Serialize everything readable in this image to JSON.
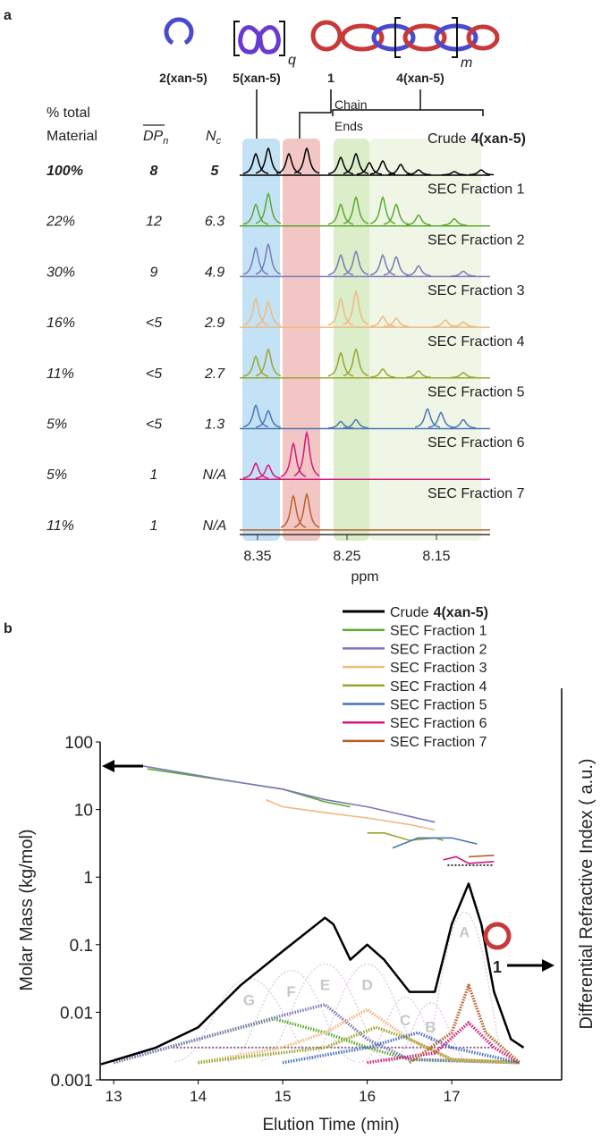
{
  "chart_data": [
    {
      "type": "nmr",
      "panel_label": "a",
      "xlabel": "ppm",
      "xlim": [
        8.37,
        8.09
      ],
      "xticks": [
        8.35,
        8.25,
        8.15
      ],
      "structure_labels": [
        "2(xan-5)",
        "5(xan-5)",
        "1",
        "4(xan-5)"
      ],
      "repeat_labels": [
        "q",
        "m"
      ],
      "region_label": [
        "Chain",
        "Ends"
      ],
      "regions": [
        {
          "color": "#c4e2f5",
          "xlim": [
            8.367,
            8.325
          ]
        },
        {
          "color": "#f3c6c6",
          "xlim": [
            8.322,
            8.28
          ]
        },
        {
          "color": "#dcedca",
          "xlim": [
            8.265,
            8.225
          ]
        },
        {
          "color": "#eff6e6",
          "xlim": [
            8.225,
            8.1
          ]
        }
      ],
      "table": {
        "headers": [
          [
            "% total",
            "Material"
          ],
          {
            "main": "DP",
            "sub": "n"
          },
          {
            "main": "N",
            "sub": "c"
          }
        ],
        "rows": [
          [
            "100%",
            "8",
            "5"
          ],
          [
            "22%",
            "12",
            "6.3"
          ],
          [
            "30%",
            "9",
            "4.9"
          ],
          [
            "16%",
            "<5",
            "2.9"
          ],
          [
            "11%",
            "<5",
            "2.7"
          ],
          [
            "5%",
            "<5",
            "1.3"
          ],
          [
            "5%",
            "1",
            "N/A"
          ],
          [
            "11%",
            "1",
            "N/A"
          ]
        ]
      },
      "series": [
        {
          "name": "Crude",
          "name_bold": "4(xan-5)",
          "color": "#000000",
          "x": [
            8.352,
            8.338,
            8.315,
            8.295,
            8.257,
            8.24,
            8.225,
            8.21,
            8.19,
            8.17,
            8.13,
            8.1
          ],
          "values": [
            0.6,
            0.75,
            0.6,
            0.75,
            0.5,
            0.6,
            0.35,
            0.4,
            0.3,
            0.15,
            0.1,
            0.15
          ]
        },
        {
          "name": "SEC Fraction 1",
          "color": "#5aaa2e",
          "x": [
            8.352,
            8.338,
            8.257,
            8.24,
            8.21,
            8.195,
            8.17,
            8.13
          ],
          "values": [
            0.6,
            0.9,
            0.6,
            0.8,
            0.8,
            0.6,
            0.3,
            0.2
          ]
        },
        {
          "name": "SEC Fraction 2",
          "color": "#7b78b8",
          "x": [
            8.352,
            8.338,
            8.257,
            8.24,
            8.21,
            8.195,
            8.17,
            8.12
          ],
          "values": [
            0.8,
            0.9,
            0.6,
            0.7,
            0.6,
            0.55,
            0.3,
            0.15
          ]
        },
        {
          "name": "SEC Fraction 3",
          "color": "#f0b97e",
          "x": [
            8.352,
            8.338,
            8.257,
            8.24,
            8.21,
            8.195,
            8.14,
            8.12
          ],
          "values": [
            0.8,
            0.7,
            0.8,
            1.0,
            0.3,
            0.25,
            0.2,
            0.15
          ]
        },
        {
          "name": "SEC Fraction 4",
          "color": "#9aa52c",
          "x": [
            8.352,
            8.338,
            8.257,
            8.24,
            8.21,
            8.17,
            8.12
          ],
          "values": [
            0.6,
            0.8,
            0.7,
            0.8,
            0.25,
            0.2,
            0.15
          ]
        },
        {
          "name": "SEC Fraction 5",
          "color": "#4a75b8",
          "x": [
            8.352,
            8.338,
            8.257,
            8.24,
            8.16,
            8.145,
            8.12
          ],
          "values": [
            0.65,
            0.5,
            0.2,
            0.25,
            0.55,
            0.45,
            0.25
          ]
        },
        {
          "name": "SEC Fraction 6",
          "color": "#d4187c",
          "x": [
            8.352,
            8.338,
            8.31,
            8.295
          ],
          "values": [
            0.45,
            0.4,
            1.0,
            1.3
          ]
        },
        {
          "name": "SEC Fraction 7",
          "color": "#b8602a",
          "x": [
            8.31,
            8.295
          ],
          "values": [
            0.95,
            1.0
          ]
        }
      ]
    },
    {
      "type": "sec",
      "panel_label": "b",
      "xlabel": "Elution Time (min)",
      "ylabel": "Molar Mass (kg/mol)",
      "y2label": "Differential Refractive Index ( a.u.)",
      "xlim": [
        12.84,
        18.3
      ],
      "xticks": [
        13,
        14,
        15,
        16,
        17
      ],
      "ylim": [
        0.001,
        100
      ],
      "yscale": "log",
      "yticks": [
        0.001,
        0.01,
        0.1,
        1,
        10,
        100
      ],
      "compound_label": "1",
      "series": [
        {
          "name": "Crude",
          "name_bold": "4(xan-5)",
          "color": "#000000",
          "ri_x": [
            12.85,
            13.5,
            14,
            14.5,
            15,
            15.5,
            15.6,
            15.8,
            16,
            16.2,
            16.5,
            16.8,
            17,
            17.2,
            17.35,
            17.5,
            17.7,
            17.85
          ],
          "ri_values": [
            0.0017,
            0.003,
            0.006,
            0.025,
            0.08,
            0.25,
            0.2,
            0.06,
            0.1,
            0.06,
            0.02,
            0.02,
            0.2,
            0.8,
            0.2,
            0.02,
            0.004,
            0.003
          ]
        },
        {
          "name": "SEC Fraction 1",
          "color": "#5aaa2e",
          "x": [
            13.4,
            14.5,
            15,
            15.5,
            15.8
          ],
          "values": [
            40,
            25,
            20,
            13,
            11
          ],
          "ri_x": [
            13,
            14,
            14.9,
            15.5,
            16,
            16.5,
            17.8
          ],
          "ri_values": [
            0.0018,
            0.004,
            0.008,
            0.005,
            0.003,
            0.002,
            0.0018
          ]
        },
        {
          "name": "SEC Fraction 2",
          "color": "#7b78b8",
          "x": [
            13.3,
            14.5,
            15,
            15.5,
            16,
            16.8
          ],
          "values": [
            45,
            25,
            20,
            14,
            11,
            6.5
          ],
          "ri_x": [
            13,
            14,
            15,
            15.5,
            16,
            16.5,
            17.8
          ],
          "ri_values": [
            0.0018,
            0.004,
            0.009,
            0.013,
            0.004,
            0.002,
            0.0018
          ]
        },
        {
          "name": "SEC Fraction 3",
          "color": "#f0b97e",
          "x": [
            14.8,
            15,
            15.5,
            16,
            16.5,
            16.8
          ],
          "values": [
            14,
            11,
            9,
            7.5,
            6,
            5
          ],
          "ri_x": [
            14,
            15,
            15.5,
            16,
            16.5,
            17,
            17.8
          ],
          "ri_values": [
            0.0018,
            0.003,
            0.005,
            0.011,
            0.004,
            0.002,
            0.0018
          ]
        },
        {
          "name": "SEC Fraction 4",
          "color": "#9aa52c",
          "x": [
            16,
            16.2,
            16.5,
            16.8,
            16.9
          ],
          "values": [
            4.5,
            4.5,
            3.5,
            3.8,
            3.5
          ],
          "ri_x": [
            14,
            15.5,
            16.1,
            16.5,
            17,
            17.8
          ],
          "ri_values": [
            0.0018,
            0.003,
            0.006,
            0.004,
            0.002,
            0.0018
          ]
        },
        {
          "name": "SEC Fraction 5",
          "color": "#4a75b8",
          "x": [
            16.3,
            16.6,
            17,
            17.3
          ],
          "values": [
            2.7,
            3.8,
            3.8,
            3.1
          ],
          "ri_x": [
            15,
            16,
            16.6,
            17,
            17.8
          ],
          "ri_values": [
            0.0018,
            0.003,
            0.005,
            0.003,
            0.0018
          ]
        },
        {
          "name": "SEC Fraction 6",
          "color": "#d4187c",
          "x": [
            16.9,
            17.05,
            17.2,
            17.5
          ],
          "values": [
            1.8,
            2,
            1.6,
            1.7
          ],
          "ri_x": [
            16,
            16.8,
            17.2,
            17.5,
            17.8
          ],
          "ri_values": [
            0.0018,
            0.0025,
            0.007,
            0.003,
            0.0018
          ]
        },
        {
          "name": "SEC Fraction 7",
          "color": "#b8602a",
          "x": [
            17.2,
            17.5
          ],
          "values": [
            2,
            2.1
          ],
          "ri_x": [
            16.5,
            17,
            17.2,
            17.4,
            17.8
          ],
          "ri_values": [
            0.0018,
            0.005,
            0.025,
            0.005,
            0.0018
          ]
        }
      ],
      "peaks": [
        {
          "label": "G",
          "x": 14.6,
          "y": 0.03,
          "width": 0.35
        },
        {
          "label": "F",
          "x": 15.1,
          "y": 0.04,
          "width": 0.3
        },
        {
          "label": "E",
          "x": 15.5,
          "y": 0.05,
          "width": 0.3
        },
        {
          "label": "D",
          "x": 16.0,
          "y": 0.05,
          "width": 0.28
        },
        {
          "label": "C",
          "x": 16.45,
          "y": 0.015,
          "width": 0.22
        },
        {
          "label": "B",
          "x": 16.75,
          "y": 0.012,
          "width": 0.2
        },
        {
          "label": "A",
          "x": 17.15,
          "y": 0.3,
          "width": 0.18
        }
      ],
      "reference_lines": [
        {
          "color": "#333333",
          "value": 1.5,
          "x": [
            16.95,
            17.5
          ]
        },
        {
          "color": "#8a5a8a",
          "value": 0.003,
          "x": [
            13.7,
            17.5
          ]
        }
      ]
    }
  ]
}
